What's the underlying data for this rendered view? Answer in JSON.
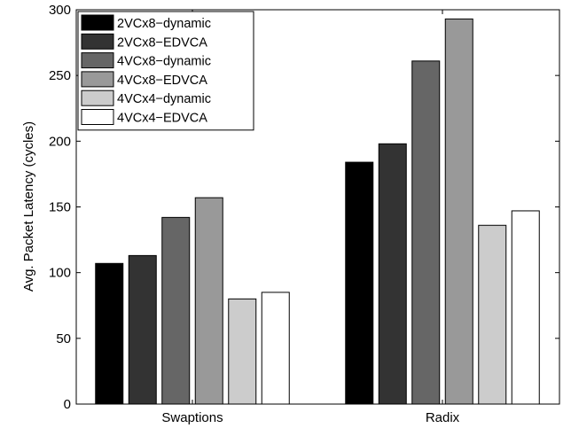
{
  "chart_data": {
    "type": "bar",
    "title": "",
    "xlabel": "",
    "ylabel": "Avg. Packet Latency (cycles)",
    "ylim": [
      0,
      300
    ],
    "yticks": [
      0,
      50,
      100,
      150,
      200,
      250,
      300
    ],
    "grid": false,
    "legend_position": "top-left",
    "categories": [
      "Swaptions",
      "Radix"
    ],
    "series": [
      {
        "name": "2VCx8−dynamic",
        "color": "#000000",
        "values": [
          107,
          184
        ]
      },
      {
        "name": "2VCx8−EDVCA",
        "color": "#333333",
        "values": [
          113,
          198
        ]
      },
      {
        "name": "4VCx8−dynamic",
        "color": "#666666",
        "values": [
          142,
          261
        ]
      },
      {
        "name": "4VCx8−EDVCA",
        "color": "#999999",
        "values": [
          157,
          293
        ]
      },
      {
        "name": "4VCx4−dynamic",
        "color": "#cccccc",
        "values": [
          80,
          136
        ]
      },
      {
        "name": "4VCx4−EDVCA",
        "color": "#ffffff",
        "values": [
          85,
          147
        ]
      }
    ]
  }
}
